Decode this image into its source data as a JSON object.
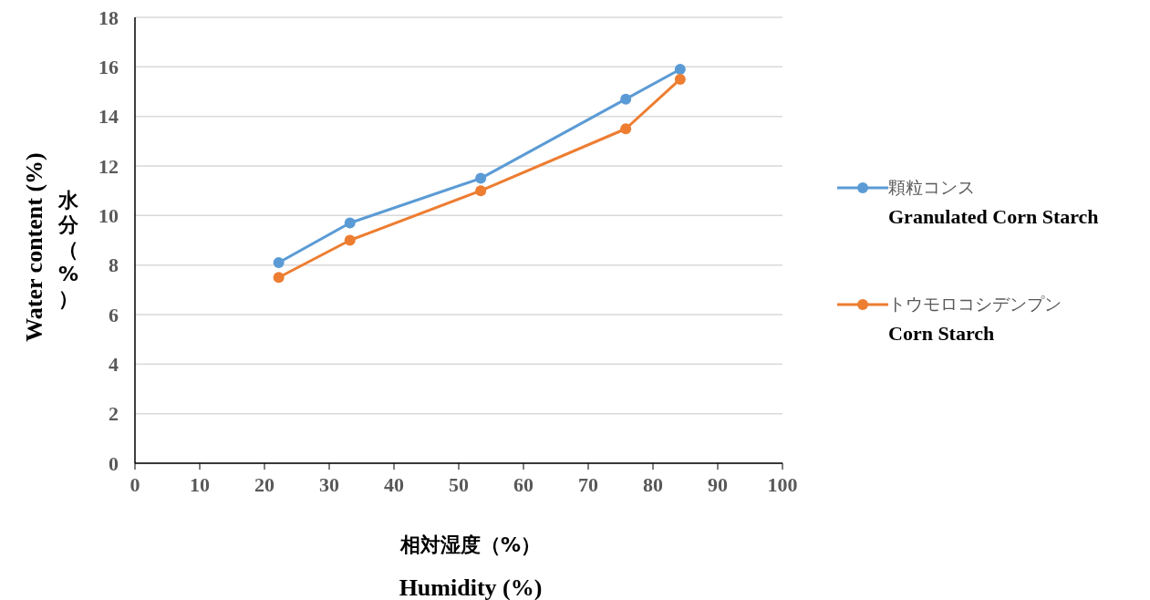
{
  "chart_data": {
    "type": "line",
    "xlabel": "相対湿度（%）\nHumidity (%)",
    "ylabel": "Water content (%)\n水分（%）",
    "xlim": [
      0,
      100
    ],
    "xticks": [
      0,
      10,
      20,
      30,
      40,
      50,
      60,
      70,
      80,
      90,
      100
    ],
    "ylim": [
      0,
      18
    ],
    "yticks": [
      0,
      2,
      4,
      6,
      8,
      10,
      12,
      14,
      16,
      18
    ],
    "grid": "y",
    "legend": "right",
    "marker": "circle",
    "line_style": "solid",
    "series": [
      {
        "name": "顆粒コンス\nGranulated Corn Starch",
        "color": "#5b9bd5",
        "x": [
          22.2,
          33.2,
          53.4,
          75.8,
          84.2
        ],
        "values": [
          8.1,
          9.7,
          11.5,
          14.7,
          15.9
        ]
      },
      {
        "name": "トウモロコシデンプン\nCorn Starch",
        "color": "#ed7d31",
        "x": [
          22.2,
          33.2,
          53.4,
          75.8,
          84.2
        ],
        "values": [
          7.5,
          9.0,
          11.0,
          13.5,
          15.5
        ]
      }
    ]
  }
}
